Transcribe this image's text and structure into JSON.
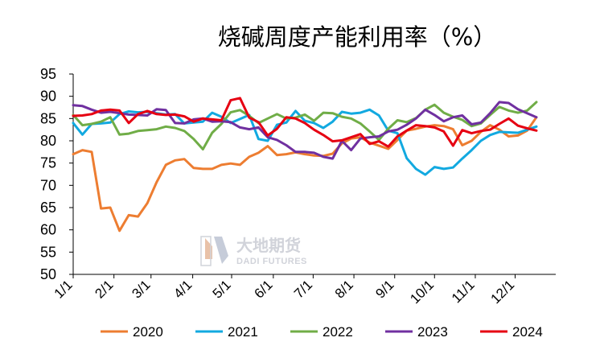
{
  "chart_data": {
    "type": "line",
    "title": "烧碱周度产能利用率（%）",
    "watermark": {
      "text_cn": "大地期货",
      "text_en": "DADI FUTURES"
    },
    "ylim": [
      50,
      95
    ],
    "yticks": [
      50,
      55,
      60,
      65,
      70,
      75,
      80,
      85,
      90,
      95
    ],
    "x_tick_labels": [
      "1/1",
      "2/1",
      "3/1",
      "4/1",
      "5/1",
      "6/1",
      "7/1",
      "8/1",
      "9/1",
      "10/1",
      "11/1",
      "12/1"
    ],
    "x_tick_weeks": [
      0,
      4.4,
      8.4,
      12.9,
      17.1,
      21.6,
      25.9,
      30.3,
      34.7,
      39.0,
      43.4,
      47.7
    ],
    "legend_position": "bottom",
    "series": [
      {
        "name": "2020",
        "color": "#ed7d31",
        "values": [
          77.0,
          77.9,
          77.5,
          64.8,
          65.0,
          59.8,
          63.3,
          63.0,
          66.0,
          70.7,
          74.6,
          75.6,
          75.9,
          73.9,
          73.7,
          73.7,
          74.6,
          74.9,
          74.6,
          76.4,
          77.3,
          78.8,
          76.8,
          77.0,
          77.4,
          77.0,
          76.7,
          76.6,
          77.1,
          79.4,
          80.5,
          80.8,
          79.6,
          78.9,
          78.2,
          80.2,
          82.3,
          82.7,
          83.2,
          83.5,
          83.3,
          82.6,
          79.0,
          80.0,
          82.0,
          83.5,
          82.5,
          81.0,
          81.2,
          82.3,
          85.3
        ]
      },
      {
        "name": "2021",
        "color": "#12a9e0",
        "values": [
          84.0,
          81.4,
          83.8,
          83.9,
          84.1,
          86.0,
          86.6,
          86.4,
          86.5,
          86.2,
          85.9,
          86.0,
          83.9,
          84.1,
          84.3,
          86.3,
          85.4,
          84.0,
          84.9,
          85.8,
          80.4,
          80.0,
          83.6,
          84.1,
          86.7,
          84.5,
          84.0,
          82.9,
          84.3,
          86.5,
          86.1,
          86.3,
          87.0,
          85.7,
          82.3,
          81.7,
          76.1,
          73.7,
          72.4,
          74.1,
          73.7,
          74.0,
          76.0,
          77.9,
          80.0,
          81.3,
          82.0,
          81.9,
          81.8,
          82.5,
          83.2
        ]
      },
      {
        "name": "2022",
        "color": "#70ad47",
        "values": [
          85.8,
          83.5,
          83.8,
          84.3,
          85.3,
          81.4,
          81.6,
          82.2,
          82.4,
          82.6,
          83.2,
          82.9,
          82.2,
          80.4,
          78.1,
          81.8,
          83.8,
          86.4,
          86.9,
          85.6,
          84.0,
          85.0,
          86.0,
          85.0,
          85.2,
          85.9,
          84.5,
          86.3,
          86.2,
          85.4,
          85.0,
          83.9,
          82.1,
          80.2,
          82.7,
          84.6,
          84.2,
          85.1,
          87.0,
          88.1,
          86.3,
          85.4,
          84.7,
          83.3,
          83.9,
          85.8,
          87.6,
          86.8,
          86.3,
          86.8,
          88.7
        ]
      },
      {
        "name": "2023",
        "color": "#7030a0",
        "values": [
          88.0,
          87.8,
          87.0,
          86.3,
          86.5,
          86.2,
          85.9,
          85.8,
          85.7,
          87.1,
          86.9,
          84.0,
          83.9,
          84.8,
          85.0,
          84.3,
          84.4,
          84.2,
          83.0,
          82.6,
          83.0,
          80.8,
          80.2,
          79.0,
          77.5,
          77.5,
          77.3,
          76.4,
          76.0,
          80.0,
          77.9,
          80.5,
          80.8,
          81.0,
          82.1,
          82.5,
          83.6,
          85.0,
          87.0,
          85.8,
          84.4,
          85.3,
          85.7,
          83.7,
          84.1,
          86.2,
          88.7,
          88.5,
          87.1,
          86.2,
          85.3
        ]
      },
      {
        "name": "2024",
        "color": "#e60012",
        "values": [
          85.6,
          85.7,
          86.0,
          86.8,
          87.0,
          86.8,
          84.0,
          86.0,
          86.7,
          86.0,
          85.8,
          85.9,
          85.5,
          84.3,
          85.0,
          84.8,
          84.6,
          89.1,
          89.6,
          85.2,
          84.2,
          81.2,
          82.7,
          85.3,
          85.0,
          84.0,
          82.5,
          81.3,
          79.9,
          80.1,
          80.8,
          81.5,
          79.3,
          79.9,
          78.7,
          81.0,
          82.3,
          83.5,
          83.3,
          83.0,
          82.1,
          78.9,
          82.4,
          81.7,
          82.2,
          82.5,
          83.8,
          85.0,
          83.4,
          82.8,
          82.3
        ]
      }
    ]
  }
}
